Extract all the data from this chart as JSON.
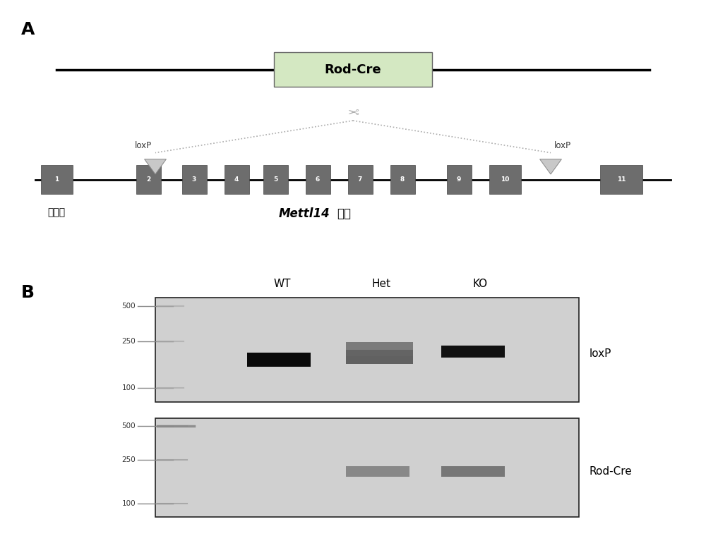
{
  "bg_color": "#ffffff",
  "panel_A_label": "A",
  "panel_B_label": "B",
  "rod_cre_box_color": "#d4e8c2",
  "rod_cre_text": "Rod-Cre",
  "exon_color": "#6d6d6d",
  "loxP_left_label": "loxP",
  "loxP_right_label": "loxP",
  "gene_label_italic": "Mettl14",
  "gene_label_normal": "基因",
  "exon_label": "外显子",
  "gel_bg_color": "#d0d0d0",
  "gel_border_color": "#222222",
  "gel_label_top": [
    "WT",
    "Het",
    "KO"
  ],
  "gel1_label": "loxP",
  "gel2_label": "Rod-Cre",
  "marker_values": [
    500,
    250,
    100
  ]
}
